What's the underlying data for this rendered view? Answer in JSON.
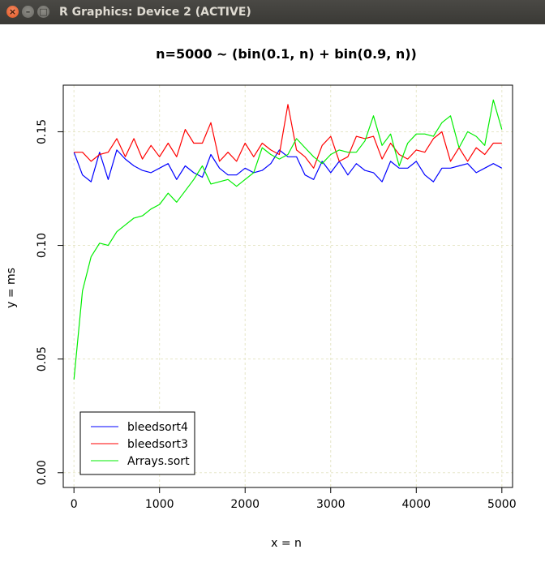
{
  "window": {
    "title": "R Graphics: Device 2 (ACTIVE)",
    "close_icon": "×",
    "minimize_icon": "–",
    "maximize_icon": "□"
  },
  "colors": {
    "titlebar": "#3c3b37",
    "grid": "#e6e6c8",
    "series": [
      "#0000ff",
      "#ff0000",
      "#00ee00"
    ]
  },
  "chart_data": {
    "type": "line",
    "title": "n=5000  ~ (bin(0.1, n) + bin(0.9, n))",
    "xlabel": "x = n",
    "ylabel": "y = ms",
    "xlim": [
      0,
      5000
    ],
    "ylim": [
      0,
      0.16
    ],
    "xticks": [
      0,
      1000,
      2000,
      3000,
      4000,
      5000
    ],
    "xtick_labels": [
      "0",
      "1000",
      "2000",
      "3000",
      "4000",
      "5000"
    ],
    "yticks": [
      0.0,
      0.05,
      0.1,
      0.15
    ],
    "ytick_labels": [
      "0.00",
      "0.05",
      "0.10",
      "0.15"
    ],
    "grid": true,
    "legend_position": "bottom-left",
    "x": [
      0,
      100,
      200,
      300,
      400,
      500,
      600,
      700,
      800,
      900,
      1000,
      1100,
      1200,
      1300,
      1400,
      1500,
      1600,
      1700,
      1800,
      1900,
      2000,
      2100,
      2200,
      2300,
      2400,
      2500,
      2600,
      2700,
      2800,
      2900,
      3000,
      3100,
      3200,
      3300,
      3400,
      3500,
      3600,
      3700,
      3800,
      3900,
      4000,
      4100,
      4200,
      4300,
      4400,
      4500,
      4600,
      4700,
      4800,
      4900,
      5000
    ],
    "series": [
      {
        "name": "bleedsort4",
        "color": "#0000ff",
        "values": [
          0.141,
          0.131,
          0.128,
          0.141,
          0.129,
          0.142,
          0.138,
          0.135,
          0.133,
          0.132,
          0.134,
          0.136,
          0.129,
          0.135,
          0.132,
          0.13,
          0.14,
          0.134,
          0.131,
          0.131,
          0.134,
          0.132,
          0.133,
          0.136,
          0.142,
          0.139,
          0.139,
          0.131,
          0.129,
          0.137,
          0.132,
          0.137,
          0.131,
          0.136,
          0.133,
          0.132,
          0.128,
          0.137,
          0.134,
          0.134,
          0.137,
          0.131,
          0.128,
          0.134,
          0.134,
          0.135,
          0.136,
          0.132,
          0.134,
          0.136,
          0.134
        ]
      },
      {
        "name": "bleedsort3",
        "color": "#ff0000",
        "values": [
          0.141,
          0.141,
          0.137,
          0.14,
          0.141,
          0.147,
          0.139,
          0.147,
          0.138,
          0.144,
          0.139,
          0.145,
          0.139,
          0.151,
          0.145,
          0.145,
          0.154,
          0.137,
          0.141,
          0.137,
          0.145,
          0.139,
          0.145,
          0.142,
          0.14,
          0.162,
          0.142,
          0.139,
          0.134,
          0.144,
          0.148,
          0.137,
          0.139,
          0.148,
          0.147,
          0.148,
          0.138,
          0.145,
          0.14,
          0.138,
          0.142,
          0.141,
          0.147,
          0.15,
          0.137,
          0.143,
          0.137,
          0.143,
          0.14,
          0.145,
          0.145
        ]
      },
      {
        "name": "Arrays.sort",
        "color": "#00ee00",
        "values": [
          0.041,
          0.08,
          0.095,
          0.101,
          0.1,
          0.106,
          0.109,
          0.112,
          0.113,
          0.116,
          0.118,
          0.123,
          0.119,
          0.124,
          0.129,
          0.135,
          0.127,
          0.128,
          0.129,
          0.126,
          0.129,
          0.132,
          0.143,
          0.14,
          0.138,
          0.14,
          0.147,
          0.143,
          0.139,
          0.136,
          0.14,
          0.142,
          0.141,
          0.141,
          0.146,
          0.157,
          0.144,
          0.149,
          0.135,
          0.145,
          0.149,
          0.149,
          0.148,
          0.154,
          0.157,
          0.143,
          0.15,
          0.148,
          0.144,
          0.164,
          0.151
        ]
      }
    ]
  }
}
